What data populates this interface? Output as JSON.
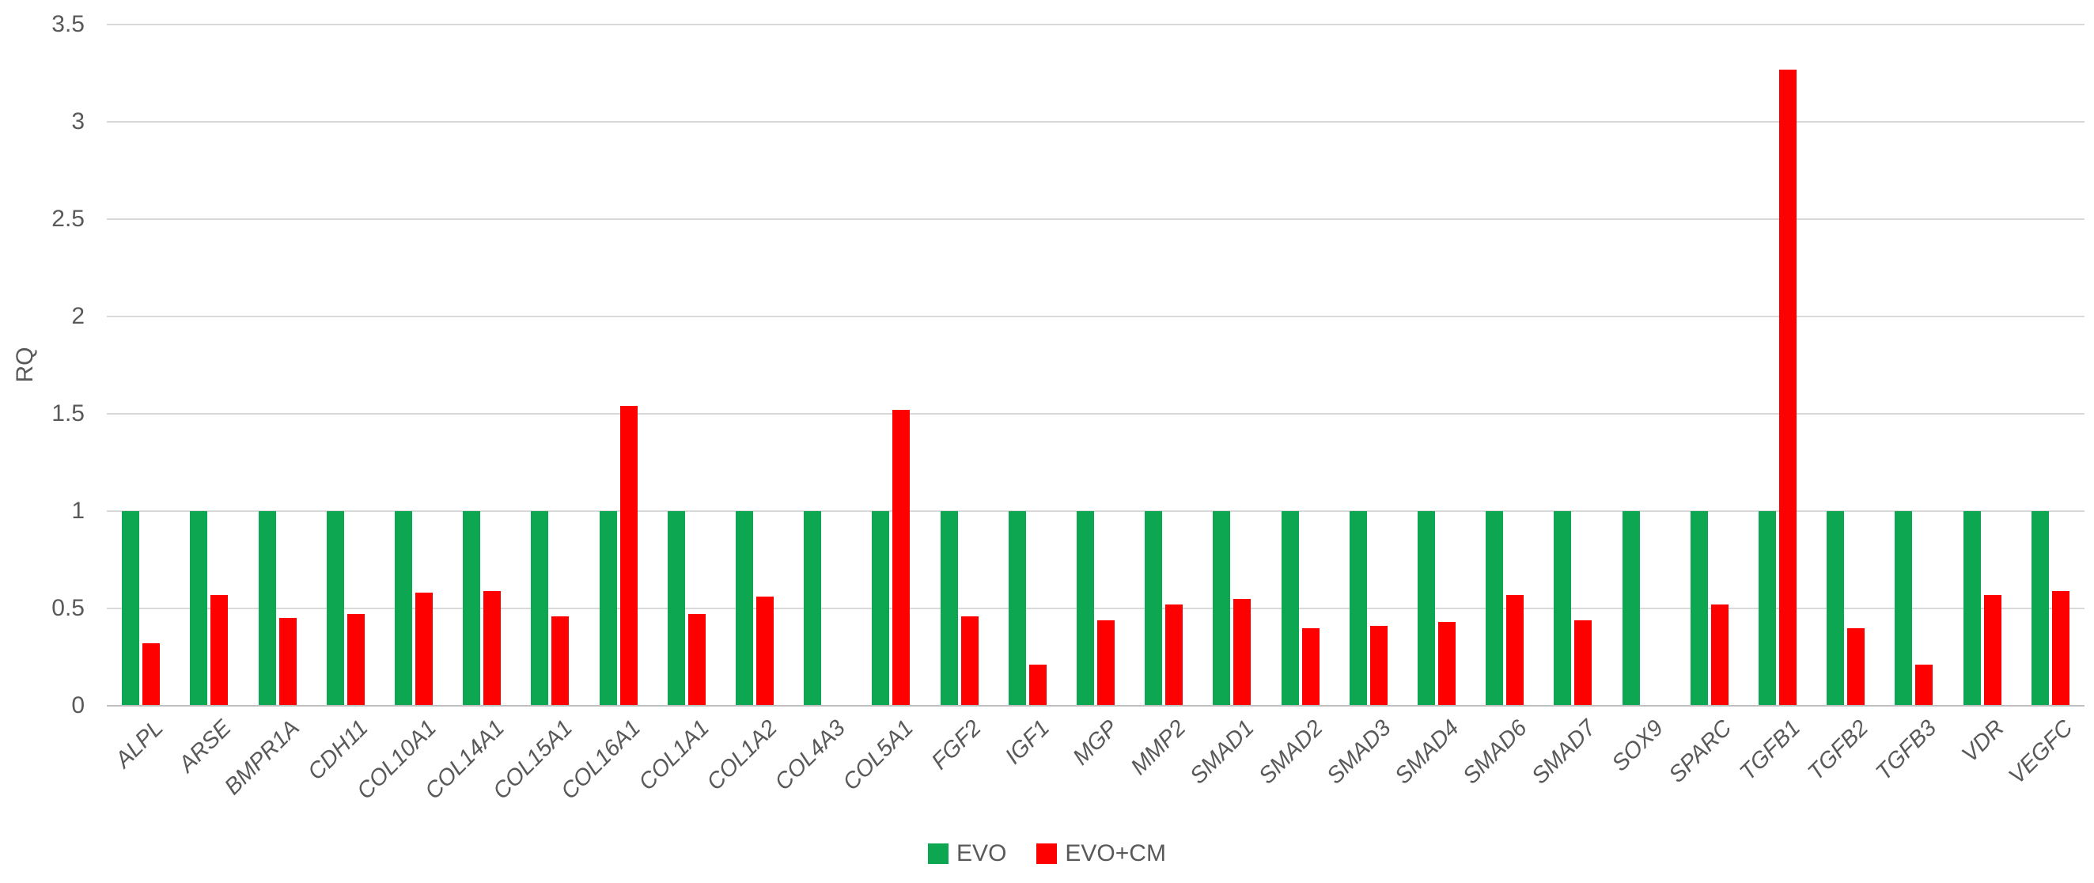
{
  "chart_data": {
    "type": "bar",
    "title": "",
    "xlabel": "",
    "ylabel": "RQ",
    "ylim": [
      0,
      3.5
    ],
    "yticks": [
      0,
      0.5,
      1,
      1.5,
      2,
      2.5,
      3,
      3.5
    ],
    "ytick_labels": [
      "0",
      "0.5",
      "1",
      "1.5",
      "2",
      "2.5",
      "3",
      "3.5"
    ],
    "grid": true,
    "legend_position": "bottom",
    "categories": [
      "ALPL",
      "ARSE",
      "BMPR1A",
      "CDH11",
      "COL10A1",
      "COL14A1",
      "COL15A1",
      "COL16A1",
      "COL1A1",
      "COL1A2",
      "COL4A3",
      "COL5A1",
      "FGF2",
      "IGF1",
      "MGP",
      "MMP2",
      "SMAD1",
      "SMAD2",
      "SMAD3",
      "SMAD4",
      "SMAD6",
      "SMAD7",
      "SOX9",
      "SPARC",
      "TGFB1",
      "TGFB2",
      "TGFB3",
      "VDR",
      "VEGFC"
    ],
    "series": [
      {
        "name": "EVO",
        "color": "#0ca750",
        "values": [
          1,
          1,
          1,
          1,
          1,
          1,
          1,
          1,
          1,
          1,
          1,
          1,
          1,
          1,
          1,
          1,
          1,
          1,
          1,
          1,
          1,
          1,
          1,
          1,
          1,
          1,
          1,
          1,
          1
        ]
      },
      {
        "name": "EVO+CM",
        "color": "#fe0000",
        "values": [
          0.32,
          0.57,
          0.45,
          0.47,
          0.58,
          0.59,
          0.46,
          1.54,
          0.47,
          0.56,
          0,
          1.52,
          0.46,
          0.21,
          0.44,
          0.52,
          0.55,
          0.4,
          0.41,
          0.43,
          0.57,
          0.44,
          0,
          0.52,
          3.27,
          0.4,
          0.21,
          0.57,
          0.59
        ]
      }
    ],
    "colors": {
      "grid": "#d9d9d9",
      "axis": "#bfbfbf",
      "text": "#595959"
    }
  }
}
